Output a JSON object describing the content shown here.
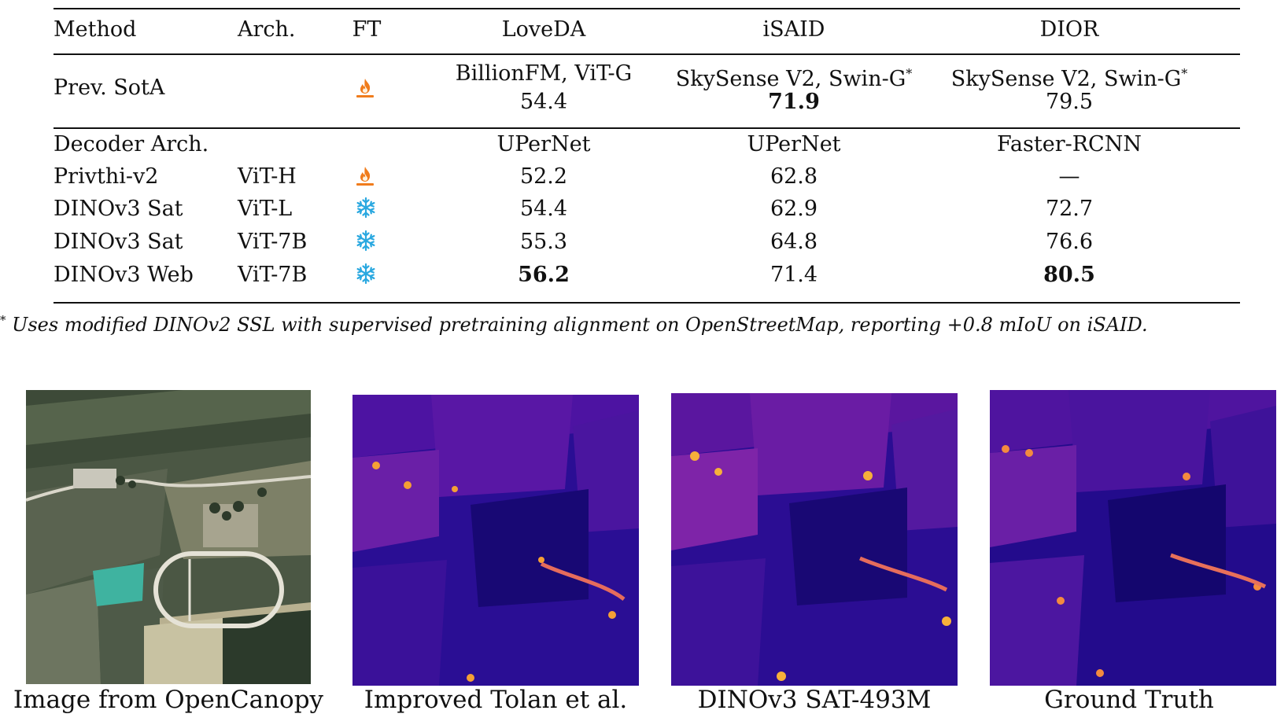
{
  "table": {
    "headers": {
      "method": "Method",
      "arch": "Arch.",
      "ft": "FT",
      "loveda": "LoveDA",
      "isaid": "iSAID",
      "dior": "DIOR"
    },
    "prev_sota": {
      "method": "Prev. SotA",
      "ft_icon": "fire-icon",
      "loveda_model": "BillionFM, ViT-G",
      "loveda_value": "54.4",
      "isaid_model": "SkySense V2, Swin-G",
      "isaid_value": "71.9",
      "dior_model": "SkySense V2, Swin-G",
      "dior_value": "79.5",
      "star": "*"
    },
    "decoder_row": {
      "label": "Decoder Arch.",
      "loveda": "UPerNet",
      "isaid": "UPerNet",
      "dior": "Faster-RCNN"
    },
    "rows": [
      {
        "method": "Privthi-v2",
        "arch": "ViT-H",
        "ft_icon": "fire-icon",
        "loveda": "52.2",
        "isaid": "62.8",
        "dior": "—"
      },
      {
        "method": "DINOv3 Sat",
        "arch": "ViT-L",
        "ft_icon": "snowflake-icon",
        "loveda": "54.4",
        "isaid": "62.9",
        "dior": "72.7"
      },
      {
        "method": "DINOv3 Sat",
        "arch": "ViT-7B",
        "ft_icon": "snowflake-icon",
        "loveda": "55.3",
        "isaid": "64.8",
        "dior": "76.6"
      },
      {
        "method": "DINOv3 Web",
        "arch": "ViT-7B",
        "ft_icon": "snowflake-icon",
        "loveda": "56.2",
        "isaid": "71.4",
        "dior": "80.5"
      }
    ]
  },
  "footnote": {
    "mark": "*",
    "text": "Uses modified DINOv2 SSL with supervised pretraining alignment on OpenStreetMap, reporting +0.8 mIoU on iSAID."
  },
  "figures": [
    {
      "caption": "Image from OpenCanopy"
    },
    {
      "caption": "Improved Tolan et al."
    },
    {
      "caption": "DINOv3 SAT-493M"
    },
    {
      "caption": "Ground Truth"
    }
  ],
  "colors": {
    "fire": "#f07c1c",
    "snow": "#2aa8e0",
    "plasma_dark": "#1d0a8a",
    "plasma_mid": "#7e1fa8",
    "plasma_hot": "#f9b233"
  }
}
